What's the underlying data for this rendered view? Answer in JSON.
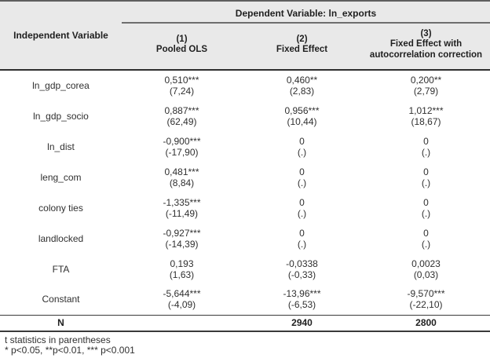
{
  "header": {
    "dependent_variable": "Dependent Variable: ln_exports",
    "independent_variable": "Independent Variable",
    "columns": [
      {
        "number": "(1)",
        "label": "Pooled OLS"
      },
      {
        "number": "(2)",
        "label": "Fixed Effect"
      },
      {
        "number": "(3)",
        "label": "Fixed Effect with autocorrelation correction"
      }
    ]
  },
  "rows": [
    {
      "variable": "ln_gdp_corea",
      "estimates": [
        "0,510***",
        "0,460**",
        "0,200**"
      ],
      "tstats": [
        "(7,24)",
        "(2,83)",
        "(2,79)"
      ]
    },
    {
      "variable": "ln_gdp_socio",
      "estimates": [
        "0,887***",
        "0,956***",
        "1,012***"
      ],
      "tstats": [
        "(62,49)",
        "(10,44)",
        "(18,67)"
      ]
    },
    {
      "variable": "ln_dist",
      "estimates": [
        "-0,900***",
        "0",
        "0"
      ],
      "tstats": [
        "(-17,90)",
        "(.)",
        "(.)"
      ]
    },
    {
      "variable": "leng_com",
      "estimates": [
        "0,481***",
        "0",
        "0"
      ],
      "tstats": [
        "(8,84)",
        "(.)",
        "(.)"
      ]
    },
    {
      "variable": "colony ties",
      "estimates": [
        "-1,335***",
        "0",
        "0"
      ],
      "tstats": [
        "(-11,49)",
        "(.)",
        "(.)"
      ]
    },
    {
      "variable": "landlocked",
      "estimates": [
        "-0,927***",
        "0",
        "0"
      ],
      "tstats": [
        "(-14,39)",
        "(.)",
        "(.)"
      ]
    },
    {
      "variable": "FTA",
      "estimates": [
        "0,193",
        "-0,0338",
        "0,0023"
      ],
      "tstats": [
        "(1,63)",
        "(-0,33)",
        "(0,03)"
      ]
    },
    {
      "variable": "Constant",
      "estimates": [
        "-5,644***",
        "-13,96***",
        "-9,570***"
      ],
      "tstats": [
        "(-4,09)",
        "(-6,53)",
        "(-22,10)"
      ]
    }
  ],
  "n_row": {
    "label": "N",
    "values": [
      "",
      "2940",
      "2800"
    ]
  },
  "notes": [
    "t statistics in parentheses",
    "* p<0.05, **p<0.01, *** p<0.001"
  ],
  "colors": {
    "header_background": "#e9e9e9",
    "border_dark": "#2f2f2f",
    "border_medium": "#6e6e6e",
    "border_light": "#a0a0a0",
    "text": "#303030"
  }
}
